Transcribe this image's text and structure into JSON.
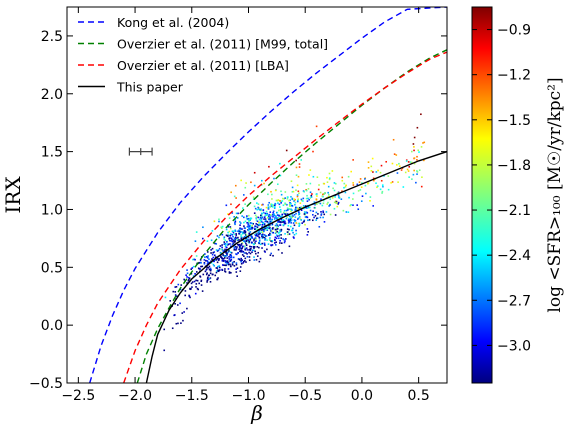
{
  "chart_data": {
    "type": "scatter",
    "xlabel": "β",
    "ylabel": "IRX",
    "xlim": [
      -2.6,
      0.75
    ],
    "ylim": [
      -0.5,
      2.75
    ],
    "xticks": [
      "−2.5",
      "−2.0",
      "−1.5",
      "−1.0",
      "−0.5",
      "0.0",
      "0.5"
    ],
    "xtick_values": [
      -2.5,
      -2.0,
      -1.5,
      -1.0,
      -0.5,
      0.0,
      0.5
    ],
    "yticks": [
      "−0.5",
      "0.0",
      "0.5",
      "1.0",
      "1.5",
      "2.0",
      "2.5"
    ],
    "ytick_values": [
      -0.5,
      0.0,
      0.5,
      1.0,
      1.5,
      2.0,
      2.5
    ],
    "grid": false,
    "legend_position": "top-left",
    "legend": [
      {
        "label": "Kong et al. (2004)",
        "color": "#0000ff",
        "style": "dashed"
      },
      {
        "label": "Overzier et al. (2011) [M99, total]",
        "color": "#008000",
        "style": "dashed"
      },
      {
        "label": "Overzier et al. (2011) [LBA]",
        "color": "#ff0000",
        "style": "dashed"
      },
      {
        "label": "This paper",
        "color": "#000000",
        "style": "solid"
      }
    ],
    "curves": [
      {
        "color": "#0000ff",
        "style": "dashed",
        "points": [
          [
            -2.4,
            -0.5
          ],
          [
            -2.3,
            -0.18
          ],
          [
            -2.2,
            0.08
          ],
          [
            -2.1,
            0.3
          ],
          [
            -2.0,
            0.49
          ],
          [
            -1.8,
            0.8
          ],
          [
            -1.6,
            1.06
          ],
          [
            -1.4,
            1.28
          ],
          [
            -1.2,
            1.48
          ],
          [
            -1.0,
            1.67
          ],
          [
            -0.8,
            1.85
          ],
          [
            -0.6,
            2.02
          ],
          [
            -0.4,
            2.18
          ],
          [
            -0.2,
            2.33
          ],
          [
            0.0,
            2.48
          ],
          [
            0.2,
            2.62
          ],
          [
            0.4,
            2.73
          ],
          [
            0.75,
            2.75
          ]
        ]
      },
      {
        "color": "#008000",
        "style": "dashed",
        "points": [
          [
            -1.98,
            -0.5
          ],
          [
            -1.9,
            -0.25
          ],
          [
            -1.8,
            -0.03
          ],
          [
            -1.7,
            0.15
          ],
          [
            -1.6,
            0.32
          ],
          [
            -1.4,
            0.6
          ],
          [
            -1.2,
            0.84
          ],
          [
            -1.0,
            1.04
          ],
          [
            -0.8,
            1.23
          ],
          [
            -0.6,
            1.41
          ],
          [
            -0.4,
            1.58
          ],
          [
            -0.2,
            1.74
          ],
          [
            0.0,
            1.9
          ],
          [
            0.2,
            2.05
          ],
          [
            0.4,
            2.19
          ],
          [
            0.6,
            2.31
          ],
          [
            0.75,
            2.38
          ]
        ]
      },
      {
        "color": "#ff0000",
        "style": "dashed",
        "points": [
          [
            -2.1,
            -0.5
          ],
          [
            -2.0,
            -0.22
          ],
          [
            -1.9,
            0.0
          ],
          [
            -1.8,
            0.19
          ],
          [
            -1.6,
            0.48
          ],
          [
            -1.4,
            0.72
          ],
          [
            -1.2,
            0.93
          ],
          [
            -1.0,
            1.12
          ],
          [
            -0.8,
            1.29
          ],
          [
            -0.6,
            1.45
          ],
          [
            -0.4,
            1.61
          ],
          [
            -0.2,
            1.76
          ],
          [
            0.0,
            1.91
          ],
          [
            0.2,
            2.05
          ],
          [
            0.4,
            2.18
          ],
          [
            0.6,
            2.3
          ],
          [
            0.75,
            2.36
          ]
        ]
      },
      {
        "color": "#000000",
        "style": "solid",
        "points": [
          [
            -1.9,
            -0.5
          ],
          [
            -1.85,
            -0.27
          ],
          [
            -1.8,
            -0.08
          ],
          [
            -1.7,
            0.13
          ],
          [
            -1.6,
            0.28
          ],
          [
            -1.5,
            0.4
          ],
          [
            -1.3,
            0.57
          ],
          [
            -1.1,
            0.71
          ],
          [
            -0.9,
            0.83
          ],
          [
            -0.7,
            0.93
          ],
          [
            -0.5,
            1.02
          ],
          [
            -0.3,
            1.1
          ],
          [
            -0.1,
            1.18
          ],
          [
            0.1,
            1.26
          ],
          [
            0.3,
            1.34
          ],
          [
            0.5,
            1.42
          ],
          [
            0.75,
            1.5
          ]
        ]
      }
    ],
    "errorbar": {
      "x": -1.95,
      "y": 1.5,
      "xerr": 0.1,
      "yerr": 0.03
    },
    "scatter_summary": {
      "n_points": 1400,
      "x_range": [
        -1.75,
        0.55
      ],
      "y_range": [
        -0.05,
        1.7
      ],
      "trend": "follows This paper curve"
    },
    "colorbar": {
      "label": "log <SFR>₁₀₀ [M☉/yr/kpc²]",
      "range": [
        -3.25,
        -0.75
      ],
      "ticks": [
        "−0.9",
        "−1.2",
        "−1.5",
        "−1.8",
        "−2.1",
        "−2.4",
        "−2.7",
        "−3.0"
      ],
      "tick_values": [
        -0.9,
        -1.2,
        -1.5,
        -1.8,
        -2.1,
        -2.4,
        -2.7,
        -3.0
      ],
      "colormap": "jet"
    }
  }
}
